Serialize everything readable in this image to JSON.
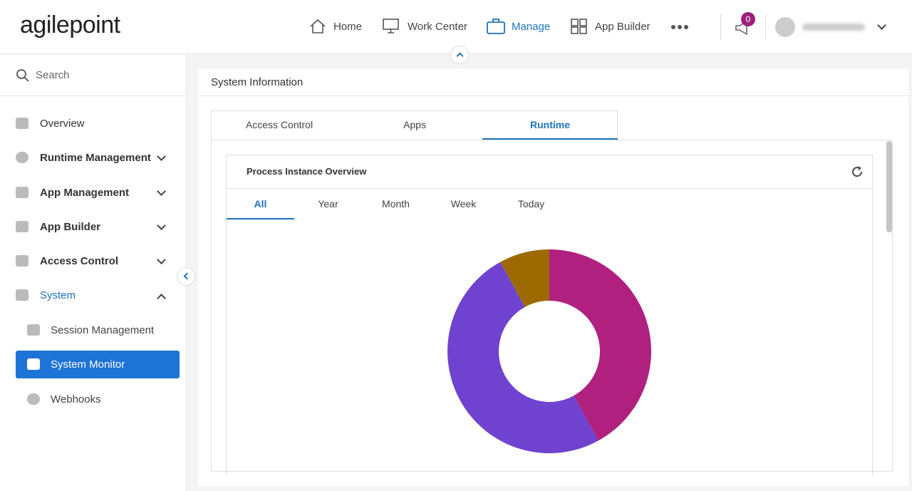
{
  "header": {
    "logo": "agilepoint",
    "nav": [
      "Home",
      "Work Center",
      "Manage",
      "App Builder"
    ],
    "notifications": 0
  },
  "sidebar": {
    "search": "Search",
    "items": [
      "Overview",
      "Runtime Management",
      "App Management",
      "App Builder",
      "Access Control",
      "System"
    ],
    "subitems": [
      "Session Management",
      "System Monitor",
      "Webhooks"
    ]
  },
  "main": {
    "title": "System Information",
    "tabs": [
      "Access Control",
      "Apps",
      "Runtime"
    ],
    "card": {
      "title": "Process Instance Overview",
      "tabs": [
        "All",
        "Year",
        "Month",
        "Week",
        "Today"
      ]
    }
  },
  "chart_data": {
    "type": "pie",
    "values": [
      42,
      50,
      8
    ],
    "colors": [
      "#b0207f",
      "#6f42d0",
      "#9c6a00"
    ]
  }
}
